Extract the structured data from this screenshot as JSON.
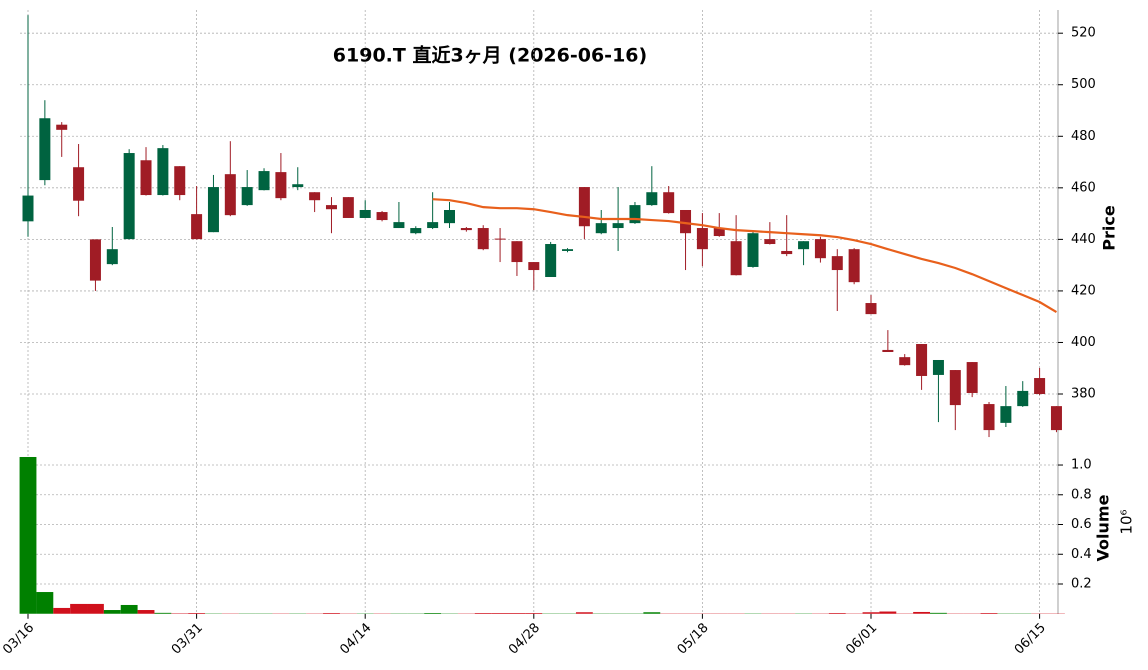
{
  "chart_data": {
    "type": "candlestick",
    "title": "6190.T  直近3ヶ月  (2026-06-16)",
    "categories": [
      "03/16",
      null,
      null,
      null,
      null,
      null,
      null,
      null,
      null,
      null,
      "03/31",
      null,
      null,
      null,
      null,
      null,
      null,
      null,
      null,
      null,
      "04/14",
      null,
      null,
      null,
      null,
      null,
      null,
      null,
      null,
      null,
      "04/28",
      null,
      null,
      null,
      null,
      null,
      null,
      null,
      null,
      null,
      "05/18",
      null,
      null,
      null,
      null,
      null,
      null,
      null,
      null,
      null,
      "06/01",
      null,
      null,
      null,
      null,
      null,
      null,
      null,
      null,
      null,
      "06/15",
      null
    ],
    "open": [
      447,
      463,
      484.5,
      468,
      440,
      430.4,
      440.1,
      470.7,
      457.2,
      468.4,
      449.8,
      442.8,
      465.3,
      453.3,
      459.1,
      466.1,
      460.3,
      458.3,
      453.3,
      456.4,
      448.3,
      450.6,
      444.4,
      442.4,
      444.4,
      446.3,
      444.4,
      444.4,
      440.3,
      439.3,
      431.2,
      425.4,
      435.5,
      460.3,
      442.4,
      444.4,
      446.3,
      453.3,
      458.3,
      451.4,
      444.4,
      444.4,
      439.3,
      429.3,
      440.1,
      435.5,
      436.2,
      440.1,
      433.5,
      436.2,
      415.3,
      397.1,
      394.3,
      399.4,
      387.4,
      389.3,
      392.4,
      376.1,
      368.8,
      375.3,
      386.2,
      375.3
    ],
    "high": [
      527,
      494,
      485.5,
      477,
      440,
      444.8,
      475,
      475.8,
      476.6,
      468.4,
      460.7,
      465,
      478.1,
      466.9,
      467.6,
      473.5,
      468,
      458.3,
      456.4,
      456.4,
      455.2,
      451,
      454.5,
      445.1,
      458.3,
      454.5,
      444.8,
      445.5,
      444.4,
      439.3,
      431.2,
      439,
      436.6,
      460.3,
      451.4,
      460.3,
      454.5,
      468.4,
      460.7,
      451.4,
      450.2,
      450.2,
      449.4,
      443.2,
      446.7,
      449.4,
      439.3,
      441,
      436.2,
      436.6,
      418.4,
      404.8,
      395.5,
      399.4,
      393.2,
      389.3,
      392.4,
      376.9,
      383.1,
      385,
      390.1,
      375.3
    ],
    "low": [
      441,
      461,
      472,
      449,
      420,
      430,
      440,
      457,
      457,
      455.2,
      440,
      442.8,
      449,
      453,
      459,
      455.2,
      459.1,
      450.6,
      442.4,
      448.3,
      448.3,
      447,
      444.4,
      442,
      444,
      444.4,
      443,
      435.8,
      431.2,
      425.8,
      420.3,
      425.4,
      435,
      440.1,
      442,
      435.5,
      446,
      453,
      450,
      428.1,
      429.6,
      441,
      426,
      429,
      438,
      433.5,
      430,
      431,
      412.2,
      422.6,
      411,
      396.3,
      391,
      381.6,
      369.1,
      366,
      378.8,
      363.3,
      367.2,
      375,
      379.6,
      365.2
    ],
    "close": [
      457,
      487,
      482.5,
      455,
      424,
      436.2,
      473.5,
      457.2,
      475.4,
      457.2,
      440.1,
      460.3,
      449.4,
      460.3,
      466.5,
      456,
      461.4,
      455.2,
      451.7,
      448.3,
      451.4,
      447.5,
      446.7,
      444.4,
      446.7,
      451.4,
      443.6,
      436.2,
      440,
      431.2,
      428.1,
      438.2,
      436.2,
      445.1,
      446.3,
      446.3,
      453.3,
      458.3,
      450.2,
      442.4,
      436.2,
      441.3,
      426.1,
      442.4,
      438.2,
      434.3,
      439.3,
      432.7,
      428.1,
      423.4,
      411,
      396.3,
      391.2,
      387,
      393.2,
      375.7,
      380.4,
      366,
      375.3,
      381.2,
      380,
      366
    ],
    "volume": [
      1.054,
      0.146,
      0.039,
      0.066,
      0.066,
      0.025,
      0.059,
      0.025,
      0.006,
      0.003,
      0.005,
      0.002,
      0.002,
      0.002,
      0.002,
      0.002,
      0.002,
      0.002,
      0.005,
      0.002,
      0.002,
      0.002,
      0.002,
      0.002,
      0.005,
      0.002,
      0.002,
      0.005,
      0.005,
      0.005,
      0.005,
      0.002,
      0.002,
      0.01,
      0.002,
      0.002,
      0.002,
      0.01,
      0.002,
      0.002,
      0.002,
      0.002,
      0.002,
      0.002,
      0.002,
      0.002,
      0.002,
      0.002,
      0.005,
      0.002,
      0.01,
      0.015,
      0.002,
      0.012,
      0.006,
      0.002,
      0.002,
      0.005,
      0.002,
      0.002,
      0.002,
      0.002
    ],
    "moving_average": [
      null,
      null,
      null,
      null,
      null,
      null,
      null,
      null,
      null,
      null,
      null,
      null,
      null,
      null,
      null,
      null,
      null,
      null,
      null,
      null,
      null,
      null,
      null,
      null,
      455.6,
      455.2,
      454.1,
      452.5,
      452.1,
      452.1,
      451.7,
      450.6,
      449.4,
      448.7,
      447.9,
      447.9,
      447.9,
      447.5,
      447.1,
      446.3,
      445.5,
      444.4,
      443.6,
      443.2,
      442.8,
      442.4,
      442,
      441.6,
      440.9,
      439.7,
      438.2,
      436.2,
      434.3,
      432.4,
      430.8,
      428.9,
      426.5,
      423.8,
      421.1,
      418.4,
      415.7,
      411.8
    ],
    "moving_average_color": "#e8601c",
    "up_color": "#006340",
    "down_color": "#a01c25",
    "volume_up_color": "#008000",
    "volume_down_color": "#d0101c",
    "ylabel": "Price",
    "ylim": [
      357.5,
      529
    ],
    "yticks": [
      380,
      400,
      420,
      440,
      460,
      480,
      500,
      520
    ],
    "y2label": "Volume",
    "y2_multiplier": "10⁶",
    "y2lim": [
      0,
      1.06
    ],
    "y2ticks": [
      0.2,
      0.4,
      0.6,
      0.8,
      {
        "value": 1,
        "label": "1.0"
      }
    ],
    "grid": true
  }
}
